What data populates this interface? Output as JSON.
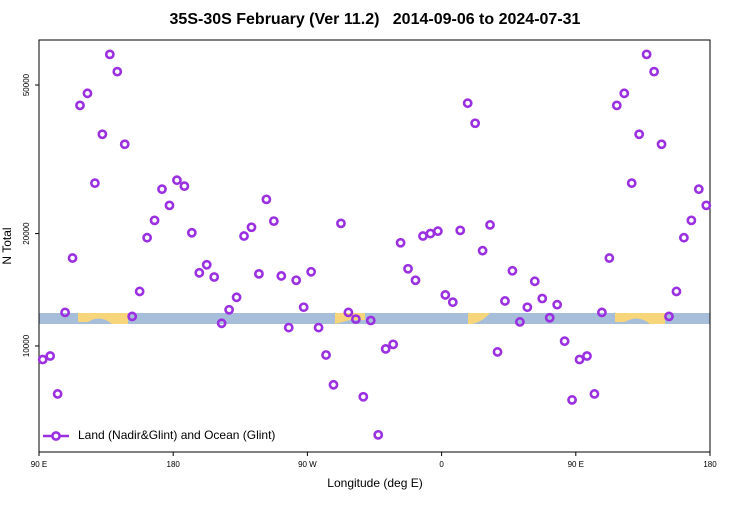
{
  "chart_data": {
    "type": "scatter",
    "title": "35S-30S February (Ver 11.2)   2014-09-06 to 2024-07-31",
    "x_label": "Longitude (deg E)",
    "y_label": "N Total",
    "log_y": true,
    "legend": "bottom left",
    "xlim": [
      90,
      540
    ],
    "xticks": [
      {
        "value": 90,
        "label": "90 E"
      },
      {
        "value": 180,
        "label": "180"
      },
      {
        "value": 270,
        "label": "90 W"
      },
      {
        "value": 360,
        "label": "0"
      },
      {
        "value": 450,
        "label": "90 E"
      },
      {
        "value": 540,
        "label": "180"
      }
    ],
    "ylim": [
      5200,
      66000
    ],
    "yticks": [
      10000,
      20000,
      50000
    ],
    "series": [
      {
        "name": "Land (Nadir&Glint) and Ocean (Glint)",
        "color": "#9b30e0",
        "x": [
          92.5,
          97.5,
          102.5,
          107.5,
          112.5,
          117.5,
          122.5,
          127.5,
          132.5,
          137.5,
          142.5,
          147.5,
          152.5,
          157.5,
          162.5,
          167.5,
          172.5,
          177.5,
          182.5,
          187.5,
          192.5,
          197.5,
          202.5,
          207.5,
          212.5,
          217.5,
          222.5,
          227.5,
          232.5,
          237.5,
          242.5,
          247.5,
          252.5,
          257.5,
          262.5,
          267.5,
          272.5,
          277.5,
          282.5,
          287.5,
          292.5,
          297.5,
          302.5,
          307.5,
          312.5,
          317.5,
          322.5,
          327.5,
          332.5,
          337.5,
          342.5,
          347.5,
          352.5,
          357.5,
          362.5,
          367.5,
          372.5,
          377.5,
          382.5,
          387.5,
          392.5,
          397.5,
          402.5,
          407.5,
          412.5,
          417.5,
          422.5,
          427.5,
          432.5,
          437.5,
          442.5,
          447.5,
          452.5,
          457.5,
          462.5,
          467.5,
          472.5,
          477.5,
          482.5,
          487.5,
          492.5,
          497.5,
          502.5,
          507.5,
          512.5,
          517.5,
          522.5,
          527.5,
          532.5,
          537.5
        ],
        "values": [
          9200,
          9400,
          7440,
          12300,
          17200,
          44100,
          47500,
          27300,
          36900,
          60400,
          54300,
          34700,
          12000,
          14000,
          19500,
          21700,
          26300,
          23800,
          27800,
          26800,
          20100,
          15700,
          16500,
          15300,
          11500,
          12500,
          13500,
          19700,
          20800,
          15600,
          24700,
          21600,
          15400,
          11200,
          15000,
          12700,
          15800,
          11200,
          9460,
          7870,
          21300,
          12300,
          11800,
          7310,
          11700,
          5780,
          9820,
          10100,
          18900,
          16100,
          15000,
          19700,
          20000,
          20300,
          13700,
          13100,
          20400,
          44700,
          39500,
          18000,
          21100,
          9640,
          13200,
          15900,
          11600,
          12700,
          14900,
          13400,
          11900,
          12900,
          10300,
          7170,
          9200,
          9400,
          7440,
          12300,
          17200,
          44100,
          47500,
          27300,
          36900,
          60400,
          54300,
          34700,
          12000,
          14000,
          19500,
          21700,
          26300,
          23800
        ]
      }
    ]
  }
}
